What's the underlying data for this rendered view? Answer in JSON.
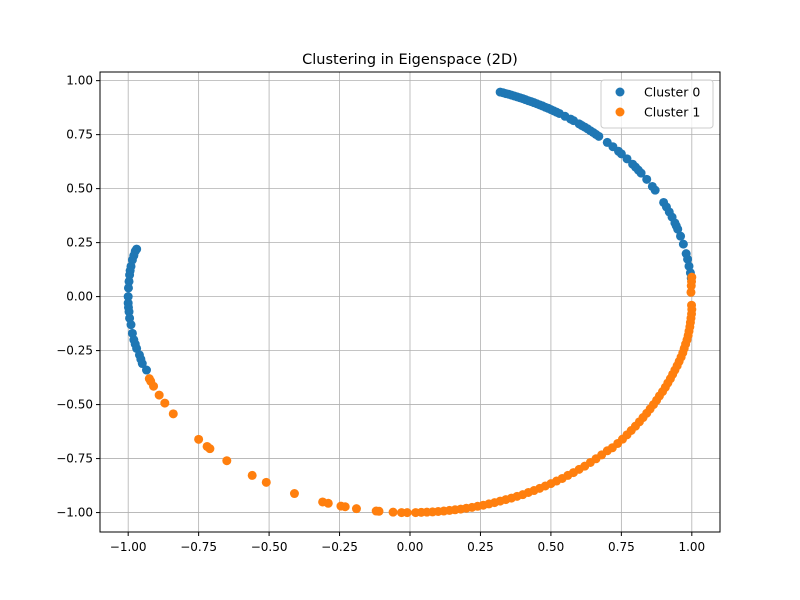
{
  "chart_data": {
    "type": "scatter",
    "title": "Clustering in Eigenspace (2D)",
    "xlabel": "",
    "ylabel": "",
    "xlim": [
      -1.1,
      1.1
    ],
    "ylim": [
      -1.09,
      1.04
    ],
    "xticks": [
      -1.0,
      -0.75,
      -0.5,
      -0.25,
      0.0,
      0.25,
      0.5,
      0.75,
      1.0
    ],
    "xtick_labels": [
      "−1.00",
      "−0.75",
      "−0.50",
      "−0.25",
      "0.00",
      "0.25",
      "0.50",
      "0.75",
      "1.00"
    ],
    "yticks": [
      1.0,
      0.75,
      0.5,
      0.25,
      0.0,
      -0.25,
      -0.5,
      -0.75,
      -1.0
    ],
    "ytick_labels": [
      "1.00",
      "0.75",
      "0.50",
      "0.25",
      "0.00",
      "−0.25",
      "−0.50",
      "−0.75",
      "−1.00"
    ],
    "grid": true,
    "legend_position": "top-right",
    "series": [
      {
        "name": "Cluster 0",
        "color": "#1f77b4",
        "points": [
          [
            0.32,
            0.947
          ],
          [
            0.33,
            0.944
          ],
          [
            0.34,
            0.94
          ],
          [
            0.35,
            0.937
          ],
          [
            0.36,
            0.933
          ],
          [
            0.37,
            0.929
          ],
          [
            0.38,
            0.925
          ],
          [
            0.39,
            0.921
          ],
          [
            0.4,
            0.917
          ],
          [
            0.41,
            0.912
          ],
          [
            0.42,
            0.907
          ],
          [
            0.43,
            0.903
          ],
          [
            0.44,
            0.898
          ],
          [
            0.45,
            0.893
          ],
          [
            0.46,
            0.888
          ],
          [
            0.47,
            0.883
          ],
          [
            0.48,
            0.877
          ],
          [
            0.49,
            0.872
          ],
          [
            0.5,
            0.866
          ],
          [
            0.51,
            0.86
          ],
          [
            0.52,
            0.854
          ],
          [
            0.53,
            0.848
          ],
          [
            0.55,
            0.835
          ],
          [
            0.57,
            0.822
          ],
          [
            0.58,
            0.815
          ],
          [
            0.6,
            0.8
          ],
          [
            0.61,
            0.792
          ],
          [
            0.62,
            0.785
          ],
          [
            0.63,
            0.777
          ],
          [
            0.64,
            0.768
          ],
          [
            0.65,
            0.76
          ],
          [
            0.66,
            0.751
          ],
          [
            0.67,
            0.742
          ],
          [
            0.7,
            0.714
          ],
          [
            0.72,
            0.694
          ],
          [
            0.74,
            0.673
          ],
          [
            0.75,
            0.661
          ],
          [
            0.77,
            0.638
          ],
          [
            0.79,
            0.613
          ],
          [
            0.8,
            0.6
          ],
          [
            0.81,
            0.586
          ],
          [
            0.82,
            0.572
          ],
          [
            0.84,
            0.543
          ],
          [
            0.86,
            0.51
          ],
          [
            0.87,
            0.493
          ],
          [
            0.9,
            0.436
          ],
          [
            0.91,
            0.415
          ],
          [
            0.92,
            0.392
          ],
          [
            0.93,
            0.368
          ],
          [
            0.94,
            0.341
          ],
          [
            0.945,
            0.327
          ],
          [
            0.95,
            0.312
          ],
          [
            0.96,
            0.28
          ],
          [
            0.97,
            0.243
          ],
          [
            0.98,
            0.199
          ],
          [
            0.985,
            0.173
          ],
          [
            0.99,
            0.141
          ],
          [
            0.995,
            0.11
          ],
          [
            0.998,
            0.085
          ],
          [
            -0.97,
            0.22
          ],
          [
            -0.975,
            0.21
          ],
          [
            -0.98,
            0.19
          ],
          [
            -0.985,
            0.17
          ],
          [
            -0.99,
            0.14
          ],
          [
            -0.993,
            0.12
          ],
          [
            -0.995,
            0.1
          ],
          [
            -0.997,
            0.07
          ],
          [
            -0.999,
            0.04
          ],
          [
            -1.0,
            0.0
          ],
          [
            -1.0,
            -0.03
          ],
          [
            -0.999,
            -0.05
          ],
          [
            -0.997,
            -0.07
          ],
          [
            -0.995,
            -0.1
          ],
          [
            -0.99,
            -0.13
          ],
          [
            -0.985,
            -0.17
          ],
          [
            -0.98,
            -0.2
          ],
          [
            -0.975,
            -0.22
          ],
          [
            -0.97,
            -0.24
          ],
          [
            -0.96,
            -0.27
          ],
          [
            -0.955,
            -0.29
          ],
          [
            -0.95,
            -0.31
          ],
          [
            -0.935,
            -0.34
          ]
        ]
      },
      {
        "name": "Cluster 1",
        "color": "#ff7f0e",
        "points": [
          [
            1.0,
            0.09
          ],
          [
            0.999,
            0.07
          ],
          [
            0.998,
            0.05
          ],
          [
            0.997,
            0.02
          ],
          [
            0.999,
            -0.04
          ],
          [
            1.0,
            -0.06
          ],
          [
            0.999,
            -0.08
          ],
          [
            0.997,
            -0.1
          ],
          [
            0.995,
            -0.12
          ],
          [
            0.993,
            -0.14
          ],
          [
            0.99,
            -0.16
          ],
          [
            0.987,
            -0.18
          ],
          [
            0.983,
            -0.2
          ],
          [
            0.978,
            -0.22
          ],
          [
            0.973,
            -0.24
          ],
          [
            0.968,
            -0.26
          ],
          [
            0.962,
            -0.28
          ],
          [
            0.955,
            -0.3
          ],
          [
            0.948,
            -0.32
          ],
          [
            0.94,
            -0.34
          ],
          [
            0.932,
            -0.36
          ],
          [
            0.924,
            -0.38
          ],
          [
            0.915,
            -0.4
          ],
          [
            0.906,
            -0.42
          ],
          [
            0.896,
            -0.44
          ],
          [
            0.885,
            -0.46
          ],
          [
            0.875,
            -0.48
          ],
          [
            0.864,
            -0.5
          ],
          [
            0.852,
            -0.52
          ],
          [
            0.84,
            -0.54
          ],
          [
            0.827,
            -0.56
          ],
          [
            0.814,
            -0.58
          ],
          [
            0.8,
            -0.6
          ],
          [
            0.785,
            -0.62
          ],
          [
            0.77,
            -0.64
          ],
          [
            0.754,
            -0.66
          ],
          [
            0.737,
            -0.68
          ],
          [
            0.718,
            -0.7
          ],
          [
            0.7,
            -0.714
          ],
          [
            0.68,
            -0.733
          ],
          [
            0.66,
            -0.751
          ],
          [
            0.64,
            -0.768
          ],
          [
            0.62,
            -0.785
          ],
          [
            0.6,
            -0.8
          ],
          [
            0.58,
            -0.815
          ],
          [
            0.56,
            -0.828
          ],
          [
            0.54,
            -0.842
          ],
          [
            0.52,
            -0.854
          ],
          [
            0.5,
            -0.866
          ],
          [
            0.48,
            -0.877
          ],
          [
            0.46,
            -0.888
          ],
          [
            0.44,
            -0.898
          ],
          [
            0.42,
            -0.907
          ],
          [
            0.4,
            -0.917
          ],
          [
            0.38,
            -0.925
          ],
          [
            0.36,
            -0.933
          ],
          [
            0.34,
            -0.94
          ],
          [
            0.32,
            -0.947
          ],
          [
            0.3,
            -0.954
          ],
          [
            0.28,
            -0.96
          ],
          [
            0.26,
            -0.966
          ],
          [
            0.24,
            -0.971
          ],
          [
            0.22,
            -0.976
          ],
          [
            0.2,
            -0.98
          ],
          [
            0.18,
            -0.984
          ],
          [
            0.16,
            -0.987
          ],
          [
            0.14,
            -0.99
          ],
          [
            0.12,
            -0.993
          ],
          [
            0.1,
            -0.995
          ],
          [
            0.08,
            -0.997
          ],
          [
            0.06,
            -0.998
          ],
          [
            0.04,
            -0.999
          ],
          [
            0.02,
            -1.0
          ],
          [
            -0.01,
            -1.0
          ],
          [
            -0.03,
            -1.0
          ],
          [
            -0.06,
            -0.998
          ],
          [
            -0.11,
            -0.994
          ],
          [
            -0.12,
            -0.993
          ],
          [
            -0.19,
            -0.982
          ],
          [
            -0.23,
            -0.973
          ],
          [
            -0.245,
            -0.97
          ],
          [
            -0.29,
            -0.957
          ],
          [
            -0.31,
            -0.951
          ],
          [
            -0.41,
            -0.912
          ],
          [
            -0.51,
            -0.86
          ],
          [
            -0.56,
            -0.828
          ],
          [
            -0.65,
            -0.76
          ],
          [
            -0.71,
            -0.704
          ],
          [
            -0.72,
            -0.694
          ],
          [
            -0.75,
            -0.661
          ],
          [
            -0.84,
            -0.543
          ],
          [
            -0.87,
            -0.493
          ],
          [
            -0.89,
            -0.456
          ],
          [
            -0.91,
            -0.415
          ],
          [
            -0.92,
            -0.392
          ],
          [
            -0.925,
            -0.38
          ]
        ]
      }
    ]
  }
}
